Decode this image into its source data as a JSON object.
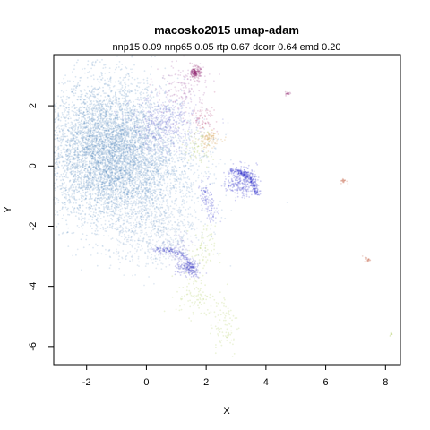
{
  "chart_data": {
    "type": "scatter",
    "title": "macosko2015 umap-adam",
    "subtitle": "nnp15 0.09 nnp65 0.05 rtp 0.67 dcorr 0.64 emd 0.20",
    "xlabel": "X",
    "ylabel": "Y",
    "xlim": [
      -3.1,
      8.5
    ],
    "ylim": [
      -6.6,
      3.7
    ],
    "x_ticks": [
      -2,
      0,
      2,
      4,
      6,
      8
    ],
    "y_ticks": [
      -6,
      -4,
      -2,
      0,
      2
    ],
    "x_tick_labels": [
      "-2",
      "0",
      "2",
      "4",
      "6",
      "8"
    ],
    "y_tick_labels": [
      "-6",
      "-4",
      "-2",
      "0",
      "2"
    ],
    "grid": false,
    "legend": "none",
    "clusters": [
      {
        "cx": -1.3,
        "cy": 0.5,
        "sx": 1.0,
        "sy": 1.15,
        "n": 5200,
        "color": "#5b8fbf"
      },
      {
        "cx": 0.0,
        "cy": -0.3,
        "sx": 1.1,
        "sy": 1.0,
        "n": 1400,
        "color": "#6f9ccb"
      },
      {
        "cx": 0.6,
        "cy": 1.4,
        "sx": 0.55,
        "sy": 0.45,
        "n": 500,
        "color": "#6e6fd0"
      },
      {
        "cx": 0.2,
        "cy": -2.2,
        "sx": 0.8,
        "sy": 0.6,
        "n": 500,
        "color": "#7aa0c8"
      },
      {
        "cx": 1.65,
        "cy": 3.1,
        "sx": 0.08,
        "sy": 0.1,
        "n": 160,
        "color": "#8b1a6b"
      },
      {
        "cx": 1.2,
        "cy": 2.6,
        "sx": 0.45,
        "sy": 0.5,
        "n": 160,
        "color": "#a050a0"
      },
      {
        "cx": 1.9,
        "cy": 1.6,
        "sx": 0.2,
        "sy": 0.2,
        "n": 70,
        "color": "#b03a70"
      },
      {
        "cx": 2.1,
        "cy": 0.9,
        "sx": 0.2,
        "sy": 0.15,
        "n": 90,
        "color": "#d0903a"
      },
      {
        "cx": 1.7,
        "cy": 0.6,
        "sx": 0.3,
        "sy": 0.3,
        "n": 70,
        "color": "#9cbc3a"
      },
      {
        "cx": 3.2,
        "cy": -0.5,
        "sx": 0.25,
        "sy": 0.25,
        "n": 280,
        "color": "#2a2ac8"
      },
      {
        "cx": 2.0,
        "cy": -0.9,
        "sx": 0.1,
        "sy": 0.25,
        "n": 60,
        "color": "#2a2ac8"
      },
      {
        "cx": 2.2,
        "cy": -1.5,
        "sx": 0.12,
        "sy": 0.2,
        "n": 50,
        "color": "#4a4ad0"
      },
      {
        "cx": 1.4,
        "cy": -3.4,
        "sx": 0.2,
        "sy": 0.12,
        "n": 140,
        "color": "#3030c0"
      },
      {
        "cx": 1.0,
        "cy": -2.8,
        "sx": 0.25,
        "sy": 0.25,
        "n": 90,
        "color": "#7a7ac8"
      },
      {
        "cx": 1.9,
        "cy": -2.8,
        "sx": 0.2,
        "sy": 0.4,
        "n": 80,
        "color": "#a8c850"
      },
      {
        "cx": 1.6,
        "cy": -4.3,
        "sx": 0.3,
        "sy": 0.35,
        "n": 90,
        "color": "#a8c850"
      },
      {
        "cx": 2.6,
        "cy": -5.2,
        "sx": 0.25,
        "sy": 0.6,
        "n": 90,
        "color": "#a8c850"
      },
      {
        "cx": 4.75,
        "cy": 2.4,
        "sx": 0.05,
        "sy": 0.03,
        "n": 20,
        "color": "#8b1a6b"
      },
      {
        "cx": 6.6,
        "cy": -0.5,
        "sx": 0.05,
        "sy": 0.04,
        "n": 20,
        "color": "#c05030"
      },
      {
        "cx": 7.4,
        "cy": -3.1,
        "sx": 0.05,
        "sy": 0.05,
        "n": 20,
        "color": "#c05030"
      },
      {
        "cx": 8.2,
        "cy": -5.6,
        "sx": 0.03,
        "sy": 0.03,
        "n": 10,
        "color": "#a8c850"
      }
    ],
    "arcs": [
      {
        "x0": 2.8,
        "y0": -0.15,
        "x1": 3.7,
        "y1": -0.95,
        "bend": 0.25,
        "n": 220,
        "color": "#1e1ec8"
      },
      {
        "x0": 0.3,
        "y0": -2.8,
        "x1": 1.65,
        "y1": -3.7,
        "bend": 0.35,
        "n": 160,
        "color": "#2020c0"
      }
    ]
  }
}
